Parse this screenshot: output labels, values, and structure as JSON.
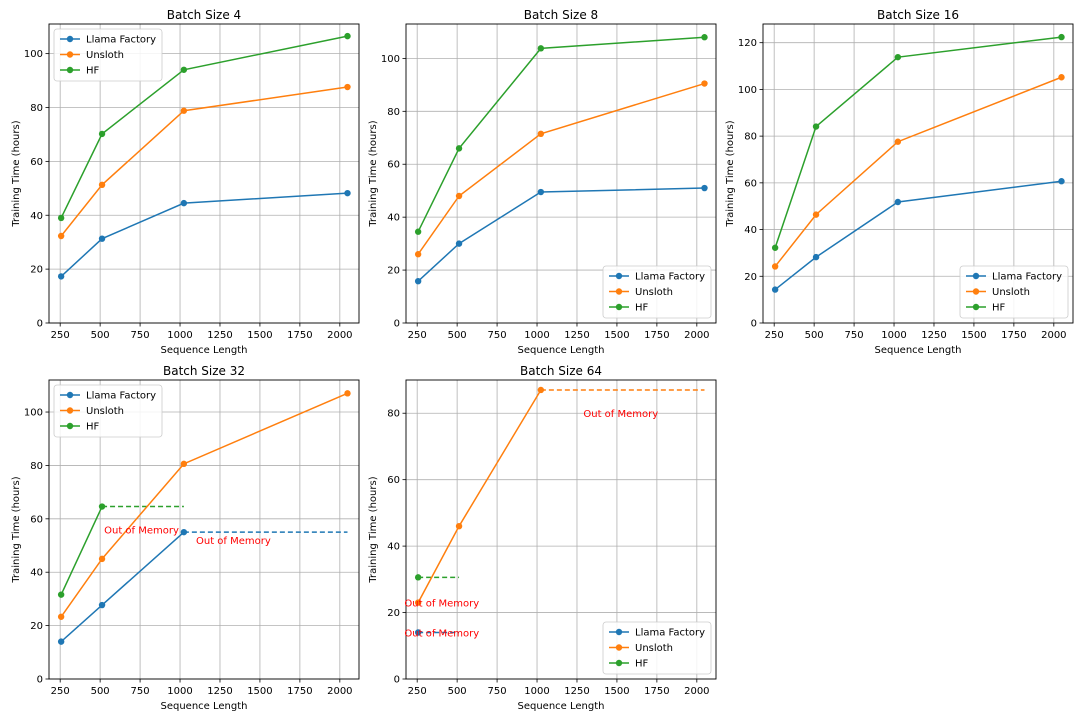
{
  "chart_data": [
    {
      "type": "line",
      "title": "Batch Size 4",
      "xlabel": "Sequence Length",
      "ylabel": "Training Time (hours)",
      "x": [
        256,
        512,
        1024,
        2048
      ],
      "xlim": [
        180,
        2120
      ],
      "ylim": [
        0,
        111
      ],
      "xticks": [
        250,
        500,
        750,
        1000,
        1250,
        1500,
        1750,
        2000
      ],
      "yticks": [
        0,
        20,
        40,
        60,
        80,
        100
      ],
      "grid": true,
      "legend": "top-left",
      "series": [
        {
          "name": "Llama Factory",
          "color": "#1f77b4",
          "values": [
            17.3,
            31.3,
            44.5,
            48.2
          ]
        },
        {
          "name": "Unsloth",
          "color": "#ff7f0e",
          "values": [
            32.3,
            51.3,
            78.8,
            87.6
          ]
        },
        {
          "name": "HF",
          "color": "#2ca02c",
          "values": [
            39.0,
            70.2,
            94.0,
            106.5
          ]
        }
      ],
      "oom": []
    },
    {
      "type": "line",
      "title": "Batch Size 8",
      "xlabel": "Sequence Length",
      "ylabel": "Training Time (hours)",
      "x": [
        256,
        512,
        1024,
        2048
      ],
      "xlim": [
        180,
        2120
      ],
      "ylim": [
        0,
        113
      ],
      "xticks": [
        250,
        500,
        750,
        1000,
        1250,
        1500,
        1750,
        2000
      ],
      "yticks": [
        0,
        20,
        40,
        60,
        80,
        100
      ],
      "grid": true,
      "legend": "bottom-right",
      "series": [
        {
          "name": "Llama Factory",
          "color": "#1f77b4",
          "values": [
            15.8,
            30.0,
            49.5,
            51.0
          ]
        },
        {
          "name": "Unsloth",
          "color": "#ff7f0e",
          "values": [
            26.0,
            48.0,
            71.5,
            90.5
          ]
        },
        {
          "name": "HF",
          "color": "#2ca02c",
          "values": [
            34.5,
            66.0,
            103.8,
            108.0
          ]
        }
      ],
      "oom": []
    },
    {
      "type": "line",
      "title": "Batch Size 16",
      "xlabel": "Sequence Length",
      "ylabel": "Training Time (hours)",
      "x": [
        256,
        512,
        1024,
        2048
      ],
      "xlim": [
        180,
        2120
      ],
      "ylim": [
        0,
        128
      ],
      "xticks": [
        250,
        500,
        750,
        1000,
        1250,
        1500,
        1750,
        2000
      ],
      "yticks": [
        0,
        20,
        40,
        60,
        80,
        100,
        120
      ],
      "grid": true,
      "legend": "bottom-right",
      "series": [
        {
          "name": "Llama Factory",
          "color": "#1f77b4",
          "values": [
            14.3,
            28.2,
            51.8,
            60.7
          ]
        },
        {
          "name": "Unsloth",
          "color": "#ff7f0e",
          "values": [
            24.2,
            46.4,
            77.6,
            105.2
          ]
        },
        {
          "name": "HF",
          "color": "#2ca02c",
          "values": [
            32.2,
            84.1,
            113.8,
            122.4
          ]
        }
      ],
      "oom": []
    },
    {
      "type": "line",
      "title": "Batch Size 32",
      "xlabel": "Sequence Length",
      "ylabel": "Training Time (hours)",
      "x": [
        256,
        512,
        1024,
        2048
      ],
      "xlim": [
        180,
        2120
      ],
      "ylim": [
        0,
        112
      ],
      "xticks": [
        250,
        500,
        750,
        1000,
        1250,
        1500,
        1750,
        2000
      ],
      "yticks": [
        0,
        20,
        40,
        60,
        80,
        100
      ],
      "grid": true,
      "legend": "top-left",
      "series": [
        {
          "name": "Llama Factory",
          "color": "#1f77b4",
          "values": [
            14.0,
            27.7,
            55.0,
            null
          ]
        },
        {
          "name": "Unsloth",
          "color": "#ff7f0e",
          "values": [
            23.3,
            45.0,
            80.6,
            107.0
          ]
        },
        {
          "name": "HF",
          "color": "#2ca02c",
          "values": [
            31.6,
            64.6,
            null,
            null
          ]
        }
      ],
      "oom": [
        {
          "series": 2,
          "from": 512,
          "to": 1024,
          "value": 64.6,
          "label": "Out of Memory",
          "label_x": 525,
          "label_y": 56
        },
        {
          "series": 0,
          "from": 1024,
          "to": 2048,
          "value": 55.0,
          "label": "Out of Memory",
          "label_x": 1100,
          "label_y": 52
        }
      ]
    },
    {
      "type": "line",
      "title": "Batch Size 64",
      "xlabel": "Sequence Length",
      "ylabel": "Training Time (hours)",
      "x": [
        256,
        512,
        1024,
        2048
      ],
      "xlim": [
        180,
        2120
      ],
      "ylim": [
        0,
        90
      ],
      "xticks": [
        250,
        500,
        750,
        1000,
        1250,
        1500,
        1750,
        2000
      ],
      "yticks": [
        0,
        20,
        40,
        60,
        80
      ],
      "grid": true,
      "legend": "bottom-right",
      "series": [
        {
          "name": "Llama Factory",
          "color": "#1f77b4",
          "values": [
            14.0,
            null,
            null,
            null
          ]
        },
        {
          "name": "Unsloth",
          "color": "#ff7f0e",
          "values": [
            23.0,
            46.0,
            87.0,
            null
          ]
        },
        {
          "name": "HF",
          "color": "#2ca02c",
          "values": [
            30.6,
            null,
            null,
            null
          ]
        }
      ],
      "oom": [
        {
          "series": 1,
          "from": 1024,
          "to": 2048,
          "value": 87.0,
          "label": "Out of Memory",
          "label_x": 1290,
          "label_y": 80
        },
        {
          "series": 2,
          "from": 256,
          "to": 512,
          "value": 30.6,
          "label": "Out of Memory",
          "label_x": 170,
          "label_y": 23
        },
        {
          "series": 0,
          "from": 256,
          "to": 512,
          "value": 14.0,
          "label": "Out of Memory",
          "label_x": 170,
          "label_y": 14
        }
      ]
    }
  ]
}
